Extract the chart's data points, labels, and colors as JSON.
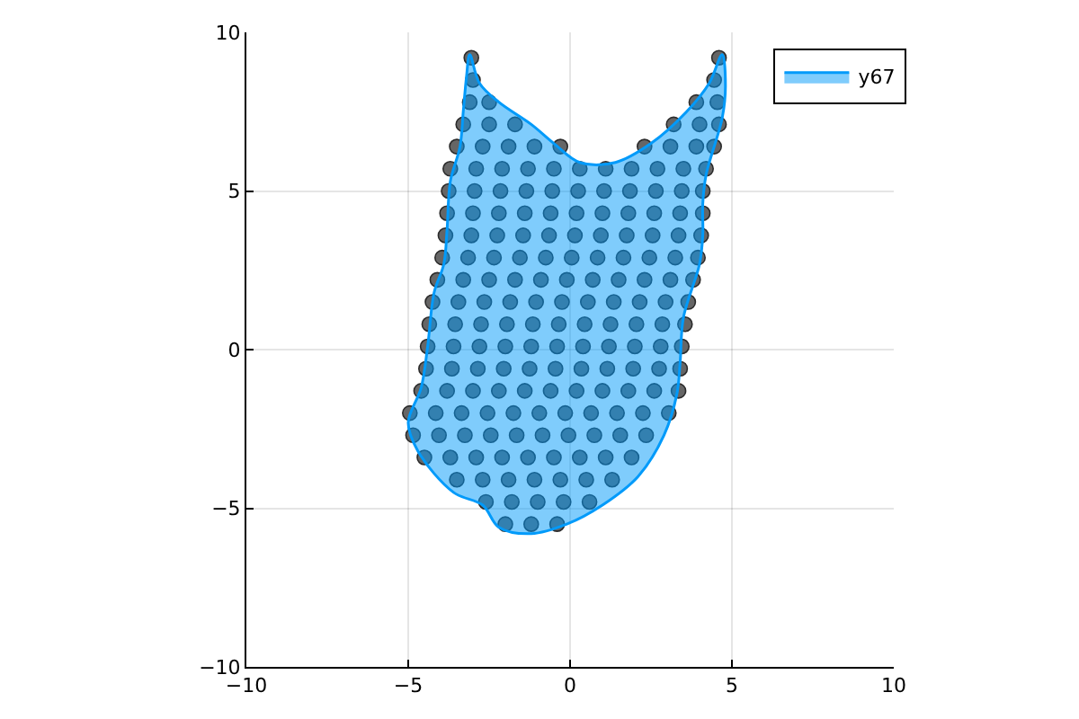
{
  "chart_data": {
    "type": "scatter",
    "xlim": [
      -10,
      10
    ],
    "ylim": [
      -10,
      10
    ],
    "xticks": [
      -10,
      -5,
      0,
      5,
      10
    ],
    "yticks": [
      -10,
      -5,
      0,
      5,
      10
    ],
    "grid": true,
    "legend": "top right",
    "series": [
      {
        "color": "#666666",
        "marker": "circle",
        "x": [
          -3.05,
          4.6,
          -3.0,
          4.45,
          -3.1,
          -2.5,
          3.9,
          4.55,
          -3.3,
          -2.5,
          -1.7,
          3.2,
          4.0,
          4.6,
          -3.5,
          -2.7,
          -1.9,
          -1.1,
          -0.3,
          2.3,
          3.1,
          3.9,
          4.45,
          -3.7,
          -2.9,
          -2.1,
          -1.3,
          -0.5,
          0.3,
          1.1,
          1.9,
          2.7,
          3.5,
          4.2,
          -3.75,
          -2.95,
          -2.15,
          -1.35,
          -0.55,
          0.25,
          1.05,
          1.85,
          2.65,
          3.45,
          4.1,
          -3.8,
          -3.0,
          -2.2,
          -1.4,
          -0.6,
          0.2,
          1.0,
          1.8,
          2.6,
          3.4,
          4.1,
          -3.85,
          -3.05,
          -2.25,
          -1.45,
          -0.65,
          0.15,
          0.95,
          1.75,
          2.55,
          3.35,
          4.05,
          -3.95,
          -3.15,
          -2.35,
          -1.55,
          -0.75,
          0.05,
          0.85,
          1.65,
          2.45,
          3.25,
          3.95,
          -4.1,
          -3.3,
          -2.5,
          -1.7,
          -0.9,
          -0.1,
          0.7,
          1.5,
          2.3,
          3.1,
          3.8
        ],
        "values": [
          9.2,
          9.2,
          8.5,
          8.5,
          7.8,
          7.8,
          7.8,
          7.8,
          7.1,
          7.1,
          7.1,
          7.1,
          7.1,
          7.1,
          6.4,
          6.4,
          6.4,
          6.4,
          6.4,
          6.4,
          6.4,
          6.4,
          6.4,
          5.7,
          5.7,
          5.7,
          5.7,
          5.7,
          5.7,
          5.7,
          5.7,
          5.7,
          5.7,
          5.7,
          5.0,
          5.0,
          5.0,
          5.0,
          5.0,
          5.0,
          5.0,
          5.0,
          5.0,
          5.0,
          5.0,
          4.3,
          4.3,
          4.3,
          4.3,
          4.3,
          4.3,
          4.3,
          4.3,
          4.3,
          4.3,
          4.3,
          3.6,
          3.6,
          3.6,
          3.6,
          3.6,
          3.6,
          3.6,
          3.6,
          3.6,
          3.6,
          3.6,
          2.9,
          2.9,
          2.9,
          2.9,
          2.9,
          2.9,
          2.9,
          2.9,
          2.9,
          2.9,
          2.9,
          2.2,
          2.2,
          2.2,
          2.2,
          2.2,
          2.2,
          2.2,
          2.2,
          2.2,
          2.2,
          2.2
        ]
      },
      {
        "color": "#666666",
        "marker": "circle",
        "x": [
          -4.25,
          -3.45,
          -2.65,
          -1.85,
          -1.05,
          -0.25,
          0.55,
          1.35,
          2.15,
          2.95,
          3.65,
          -4.35,
          -3.55,
          -2.75,
          -1.95,
          -1.15,
          -0.35,
          0.45,
          1.25,
          2.05,
          2.85,
          3.55,
          -4.4,
          -3.6,
          -2.8,
          -2.0,
          -1.2,
          -0.4,
          0.4,
          1.2,
          2.0,
          2.8,
          3.45,
          -4.45,
          -3.65,
          -2.85,
          -2.05,
          -1.25,
          -0.45,
          0.35,
          1.15,
          1.95,
          2.75,
          3.4,
          -4.6,
          -3.8,
          -3.0,
          -2.2,
          -1.4,
          -0.6,
          0.2,
          1.0,
          1.8,
          2.6,
          3.35,
          -4.95,
          -4.15,
          -3.35,
          -2.55,
          -1.75,
          -0.95,
          -0.15,
          0.65,
          1.45,
          2.25,
          3.05,
          -4.85,
          -4.05,
          -3.25,
          -2.45,
          -1.65,
          -0.85,
          -0.05,
          0.75,
          1.55,
          2.35,
          -4.5,
          -3.7,
          -2.9,
          -2.1,
          -1.3,
          -0.5,
          0.3,
          1.1,
          1.9,
          -3.5,
          -2.7,
          -1.9,
          -1.1,
          -0.3,
          0.5,
          1.3,
          -2.6,
          -1.8,
          -1.0,
          -0.2,
          0.6,
          -2.0,
          -1.2,
          -0.4
        ],
        "values": [
          1.5,
          1.5,
          1.5,
          1.5,
          1.5,
          1.5,
          1.5,
          1.5,
          1.5,
          1.5,
          1.5,
          0.8,
          0.8,
          0.8,
          0.8,
          0.8,
          0.8,
          0.8,
          0.8,
          0.8,
          0.8,
          0.8,
          0.1,
          0.1,
          0.1,
          0.1,
          0.1,
          0.1,
          0.1,
          0.1,
          0.1,
          0.1,
          0.1,
          -0.6,
          -0.6,
          -0.6,
          -0.6,
          -0.6,
          -0.6,
          -0.6,
          -0.6,
          -0.6,
          -0.6,
          -0.6,
          -1.3,
          -1.3,
          -1.3,
          -1.3,
          -1.3,
          -1.3,
          -1.3,
          -1.3,
          -1.3,
          -1.3,
          -1.3,
          -2.0,
          -2.0,
          -2.0,
          -2.0,
          -2.0,
          -2.0,
          -2.0,
          -2.0,
          -2.0,
          -2.0,
          -2.0,
          -2.7,
          -2.7,
          -2.7,
          -2.7,
          -2.7,
          -2.7,
          -2.7,
          -2.7,
          -2.7,
          -2.7,
          -3.4,
          -3.4,
          -3.4,
          -3.4,
          -3.4,
          -3.4,
          -3.4,
          -3.4,
          -3.4,
          -4.1,
          -4.1,
          -4.1,
          -4.1,
          -4.1,
          -4.1,
          -4.1,
          -4.8,
          -4.8,
          -4.8,
          -4.8,
          -4.8,
          -5.5,
          -5.5,
          -5.5
        ]
      },
      {
        "type": "area",
        "name": "y67",
        "color": "#009afa",
        "x": [
          -3.1,
          -2.8,
          -2.2,
          -1.2,
          -0.5,
          0.3,
          1.4,
          2.5,
          3.6,
          4.3,
          4.7,
          4.8,
          4.7,
          4.2,
          4.1,
          4.1,
          4.0,
          3.5,
          3.4,
          3.3,
          2.9,
          2.1,
          1.0,
          -0.1,
          -1.2,
          -2.2,
          -2.7,
          -3.6,
          -4.7,
          -5.0,
          -4.6,
          -4.4,
          -4.2,
          -3.9,
          -3.8,
          -3.7,
          -3.4,
          -3.3,
          -3.2,
          -3.1
        ],
        "values": [
          9.3,
          8.4,
          7.8,
          7.1,
          6.5,
          5.9,
          5.9,
          6.5,
          7.5,
          8.4,
          9.3,
          8.3,
          7.3,
          5.5,
          4.6,
          3.6,
          2.7,
          1.0,
          -0.4,
          -1.4,
          -2.7,
          -4.0,
          -4.9,
          -5.5,
          -5.8,
          -5.6,
          -4.9,
          -4.5,
          -3.2,
          -2.3,
          -1.2,
          0.1,
          1.8,
          2.7,
          3.8,
          5.3,
          6.4,
          7.5,
          8.6,
          9.3
        ]
      }
    ]
  }
}
